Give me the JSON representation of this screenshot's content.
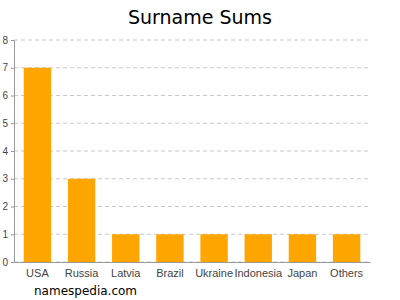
{
  "chart_data": {
    "type": "bar",
    "title": "Surname Sums",
    "categories": [
      "USA",
      "Russia",
      "Latvia",
      "Brazil",
      "Ukraine",
      "Indonesia",
      "Japan",
      "Others"
    ],
    "values": [
      7,
      3,
      1,
      1,
      1,
      1,
      1,
      1
    ],
    "color": "#ffa500",
    "ylim": [
      0,
      8
    ],
    "yticks": [
      0,
      1,
      2,
      3,
      4,
      5,
      6,
      7,
      8
    ],
    "grid": true,
    "annotations": [
      "namespedia.com"
    ]
  }
}
